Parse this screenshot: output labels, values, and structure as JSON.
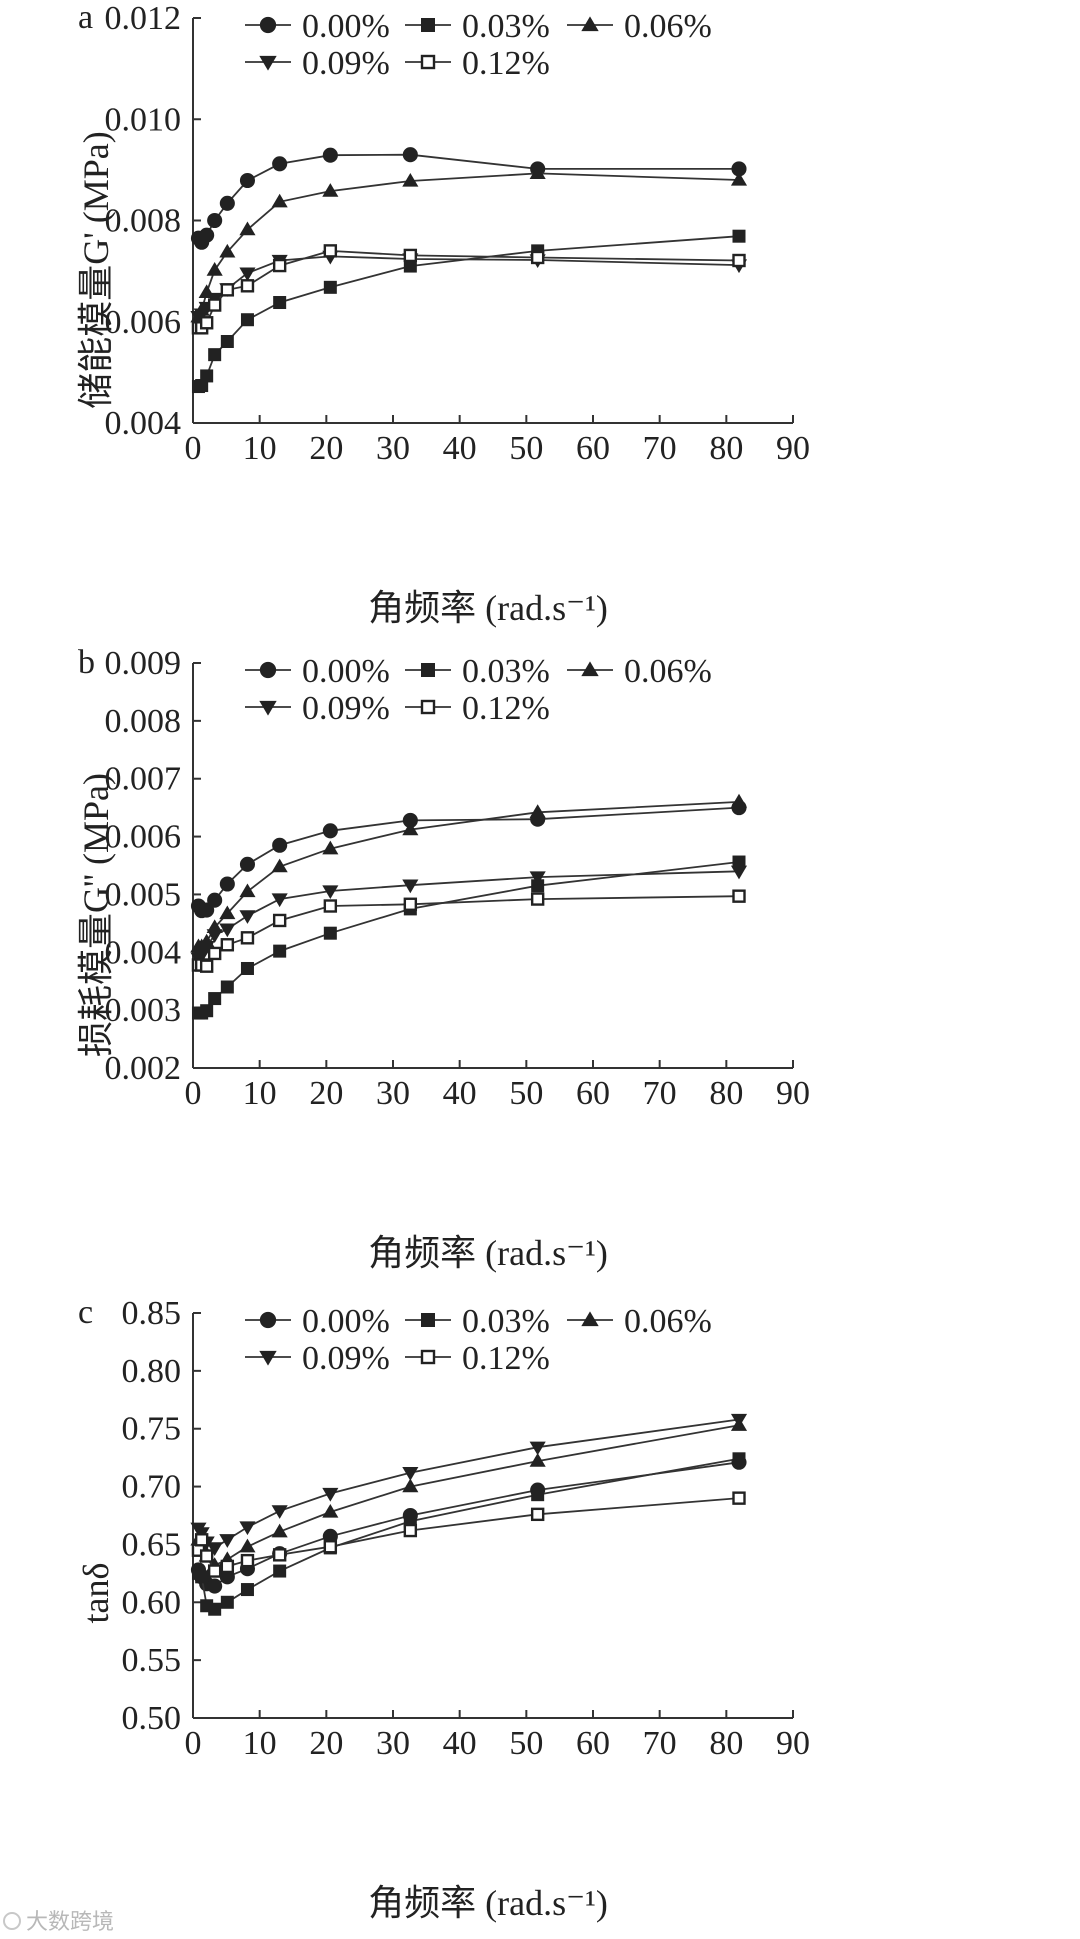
{
  "figure": {
    "watermark": "大数跨境",
    "colors": {
      "axis": "#333333",
      "line": "#333333",
      "marker": "#222222",
      "background": "#ffffff"
    }
  },
  "chart_data": [
    {
      "panel_label": "a",
      "type": "line",
      "xlabel": "角频率 (rad.s⁻¹)",
      "ylabel": "储能模量G' (MPa)",
      "xlim": [
        0,
        90
      ],
      "ylim": [
        0.004,
        0.012
      ],
      "x_ticks": [
        "0",
        "10",
        "20",
        "30",
        "40",
        "50",
        "60",
        "70",
        "80",
        "90"
      ],
      "y_ticks": [
        "0.004",
        "0.006",
        "0.008",
        "0.010",
        "0.012"
      ],
      "y_tick_values": [
        0.004,
        0.006,
        0.008,
        0.01,
        0.012
      ],
      "legend": [
        "0.00%",
        "0.03%",
        "0.06%",
        "0.09%",
        "0.12%"
      ],
      "x": [
        0.82,
        1.3,
        2.05,
        3.25,
        5.15,
        8.17,
        13.0,
        20.6,
        32.6,
        51.7,
        81.9
      ],
      "series": [
        {
          "name": "0.00%",
          "marker": "circle",
          "values": [
            0.00765,
            0.00757,
            0.00771,
            0.008,
            0.00834,
            0.00879,
            0.00912,
            0.00929,
            0.0093,
            0.00902,
            0.00902
          ]
        },
        {
          "name": "0.03%",
          "marker": "square",
          "values": [
            0.00472,
            0.00474,
            0.00493,
            0.00535,
            0.00561,
            0.00604,
            0.00638,
            0.00668,
            0.0071,
            0.0074,
            0.00769
          ]
        },
        {
          "name": "0.06%",
          "marker": "triangle-up",
          "values": [
            0.0061,
            0.00623,
            0.00658,
            0.00702,
            0.00738,
            0.00782,
            0.00837,
            0.00858,
            0.00878,
            0.00893,
            0.0088
          ]
        },
        {
          "name": "0.09%",
          "marker": "triangle-down",
          "values": [
            0.0061,
            0.00615,
            0.00628,
            0.00646,
            0.00665,
            0.00696,
            0.00721,
            0.00729,
            0.00724,
            0.00722,
            0.00712
          ]
        },
        {
          "name": "0.12%",
          "marker": "square-open",
          "values": [
            0.00588,
            0.00588,
            0.00598,
            0.00633,
            0.00663,
            0.00671,
            0.00711,
            0.0074,
            0.00731,
            0.00727,
            0.00721
          ]
        }
      ]
    },
    {
      "panel_label": "b",
      "type": "line",
      "xlabel": "角频率 (rad.s⁻¹)",
      "ylabel": "损耗模量G'' (MPa)",
      "xlim": [
        0,
        90
      ],
      "ylim": [
        0.002,
        0.009
      ],
      "x_ticks": [
        "0",
        "10",
        "20",
        "30",
        "40",
        "50",
        "60",
        "70",
        "80",
        "90"
      ],
      "y_ticks": [
        "0.002",
        "0.003",
        "0.004",
        "0.005",
        "0.006",
        "0.007",
        "0.008",
        "0.009"
      ],
      "y_tick_values": [
        0.002,
        0.003,
        0.004,
        0.005,
        0.006,
        0.007,
        0.008,
        0.009
      ],
      "legend": [
        "0.00%",
        "0.03%",
        "0.06%",
        "0.09%",
        "0.12%"
      ],
      "x": [
        0.82,
        1.3,
        2.05,
        3.25,
        5.15,
        8.17,
        13.0,
        20.6,
        32.6,
        51.7,
        81.9
      ],
      "series": [
        {
          "name": "0.00%",
          "marker": "circle",
          "values": [
            0.0048,
            0.00472,
            0.00473,
            0.0049,
            0.00518,
            0.00552,
            0.00585,
            0.0061,
            0.00628,
            0.0063,
            0.0065
          ]
        },
        {
          "name": "0.03%",
          "marker": "square",
          "values": [
            0.00295,
            0.00295,
            0.00299,
            0.0032,
            0.0034,
            0.00372,
            0.00402,
            0.00433,
            0.00475,
            0.00515,
            0.00556
          ]
        },
        {
          "name": "0.06%",
          "marker": "triangle-up",
          "values": [
            0.0041,
            0.0041,
            0.00418,
            0.00443,
            0.00467,
            0.00505,
            0.00548,
            0.00579,
            0.00612,
            0.00642,
            0.0066
          ]
        },
        {
          "name": "0.09%",
          "marker": "triangle-down",
          "values": [
            0.0039,
            0.00395,
            0.0041,
            0.0043,
            0.0044,
            0.00463,
            0.00492,
            0.00506,
            0.00516,
            0.0053,
            0.0054
          ]
        },
        {
          "name": "0.12%",
          "marker": "square-open",
          "values": [
            0.00378,
            0.00378,
            0.00376,
            0.00398,
            0.00413,
            0.00425,
            0.00455,
            0.0048,
            0.00483,
            0.00492,
            0.00497
          ]
        }
      ]
    },
    {
      "panel_label": "c",
      "type": "line",
      "xlabel": "角频率 (rad.s⁻¹)",
      "ylabel": "tanδ",
      "xlim": [
        0,
        90
      ],
      "ylim": [
        0.5,
        0.85
      ],
      "x_ticks": [
        "0",
        "10",
        "20",
        "30",
        "40",
        "50",
        "60",
        "70",
        "80",
        "90"
      ],
      "y_ticks": [
        "0.50",
        "0.55",
        "0.60",
        "0.65",
        "0.70",
        "0.75",
        "0.80",
        "0.85"
      ],
      "y_tick_values": [
        0.5,
        0.55,
        0.6,
        0.65,
        0.7,
        0.75,
        0.8,
        0.85
      ],
      "legend": [
        "0.00%",
        "0.03%",
        "0.06%",
        "0.09%",
        "0.12%"
      ],
      "x": [
        0.82,
        1.3,
        2.05,
        3.25,
        5.15,
        8.17,
        13.0,
        20.6,
        32.6,
        51.7,
        81.9
      ],
      "series": [
        {
          "name": "0.00%",
          "marker": "circle",
          "values": [
            0.628,
            0.622,
            0.616,
            0.614,
            0.622,
            0.629,
            0.642,
            0.657,
            0.675,
            0.697,
            0.721
          ]
        },
        {
          "name": "0.03%",
          "marker": "square",
          "values": [
            0.625,
            0.622,
            0.597,
            0.594,
            0.6,
            0.611,
            0.627,
            0.647,
            0.67,
            0.693,
            0.724
          ]
        },
        {
          "name": "0.06%",
          "marker": "triangle-up",
          "values": [
            0.654,
            0.649,
            0.64,
            0.632,
            0.637,
            0.648,
            0.661,
            0.678,
            0.7,
            0.722,
            0.753
          ]
        },
        {
          "name": "0.09%",
          "marker": "triangle-down",
          "values": [
            0.664,
            0.66,
            0.652,
            0.647,
            0.654,
            0.665,
            0.679,
            0.694,
            0.712,
            0.734,
            0.758
          ]
        },
        {
          "name": "0.12%",
          "marker": "square-open",
          "values": [
            0.645,
            0.654,
            0.64,
            0.627,
            0.631,
            0.636,
            0.641,
            0.648,
            0.662,
            0.676,
            0.69
          ]
        }
      ]
    }
  ]
}
